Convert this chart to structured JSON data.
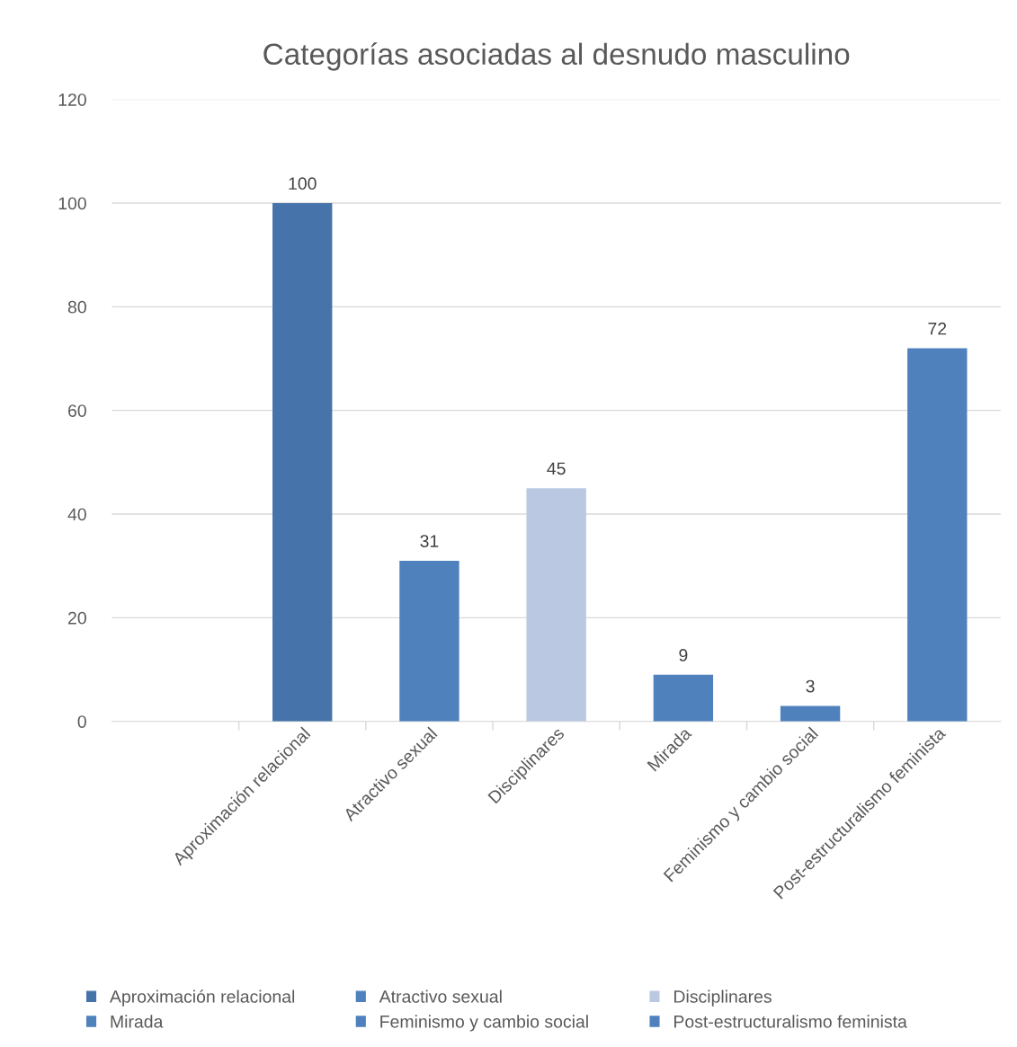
{
  "chart_data": {
    "type": "bar",
    "title": "Categorías asociadas al desnudo masculino",
    "categories": [
      null,
      "Aproximación relacional",
      "Atractivo sexual",
      "Disciplinares",
      "Mirada",
      "Feminismo y cambio social",
      "Post-estructuralismo feminista"
    ],
    "series": [
      {
        "name": "Aproximación relacional",
        "color": "#4674aa",
        "values": [
          null,
          100,
          null,
          null,
          null,
          null,
          null
        ]
      },
      {
        "name": "Atractivo sexual",
        "color": "#4f81bd",
        "values": [
          null,
          null,
          31,
          null,
          null,
          null,
          null
        ]
      },
      {
        "name": "Disciplinares",
        "color": "#bbc8e1",
        "values": [
          null,
          null,
          null,
          45,
          null,
          null,
          null
        ]
      },
      {
        "name": "Mirada",
        "color": "#4f81bd",
        "values": [
          null,
          null,
          null,
          null,
          9,
          null,
          null
        ]
      },
      {
        "name": "Feminismo y cambio social",
        "color": "#4f81bd",
        "values": [
          null,
          null,
          null,
          null,
          null,
          3,
          null
        ]
      },
      {
        "name": "Post-estructuralismo feminista",
        "color": "#4f81bd",
        "values": [
          null,
          null,
          null,
          null,
          null,
          null,
          72
        ]
      }
    ],
    "ylim": [
      0,
      120
    ],
    "yticks": [
      0,
      20,
      40,
      60,
      80,
      100,
      120
    ],
    "grid": "y",
    "legend": "bottom",
    "data_labels": true
  }
}
